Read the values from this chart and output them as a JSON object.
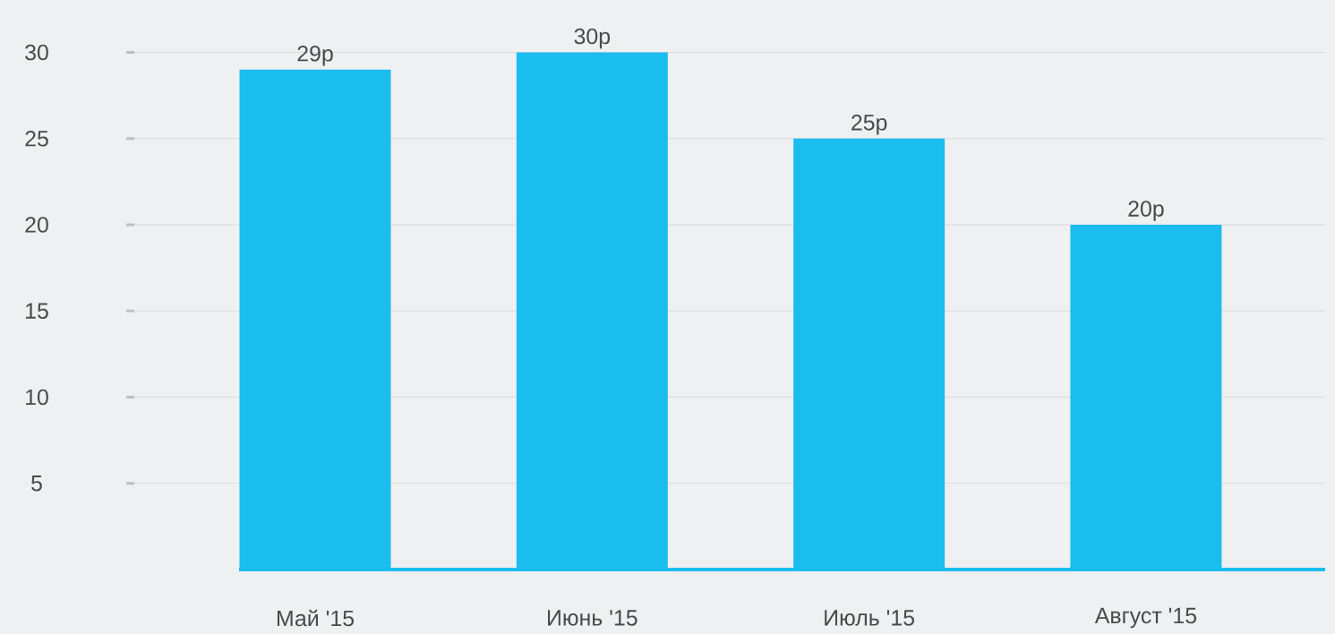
{
  "chart_data": {
    "type": "bar",
    "categories": [
      "Май '15",
      "Июнь '15",
      "Июль '15",
      "Август '15"
    ],
    "values": [
      29,
      30,
      25,
      20
    ],
    "value_labels": [
      "29р",
      "30р",
      "25р",
      "20р"
    ],
    "color": "#1bbdee",
    "ylim": [
      0,
      30
    ],
    "yticks": [
      5,
      10,
      15,
      20,
      25,
      30
    ],
    "grid": "y"
  }
}
